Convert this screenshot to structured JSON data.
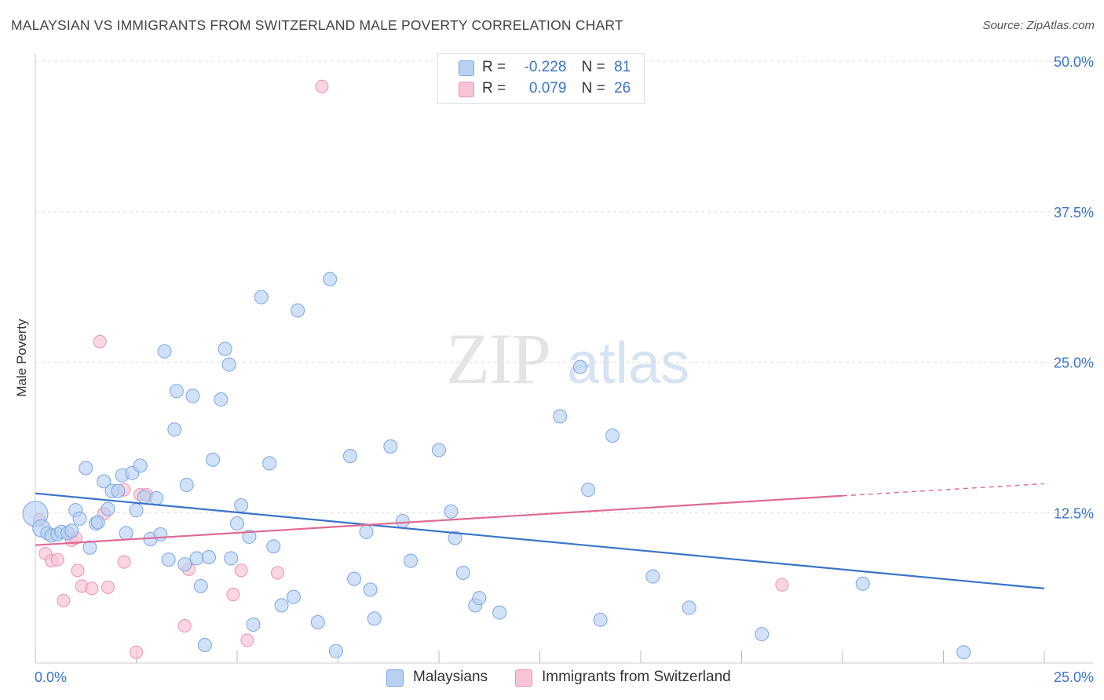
{
  "title": "MALAYSIAN VS IMMIGRANTS FROM SWITZERLAND MALE POVERTY CORRELATION CHART",
  "source": "Source: ZipAtlas.com",
  "watermark": {
    "zip": "ZIP",
    "atlas": "atlas"
  },
  "legend": {
    "row1": {
      "r_label": "R =",
      "r_value": "-0.228",
      "n_label": "N =",
      "n_value": "81"
    },
    "row2": {
      "r_label": "R =",
      "r_value": "0.079",
      "n_label": "N =",
      "n_value": "26"
    }
  },
  "colors": {
    "blue_fill": "#b8d1f3",
    "blue_stroke": "#7aa6e0",
    "blue_line": "#3a74c9",
    "pink_fill": "#f8c4d4",
    "pink_stroke": "#ea93b0",
    "pink_line": "#e06a93",
    "grid": "#dddddd",
    "tick_label": "#3a74c9"
  },
  "chart_data": {
    "type": "scatter",
    "title": "MALAYSIAN VS IMMIGRANTS FROM SWITZERLAND MALE POVERTY CORRELATION CHART",
    "xlabel": "",
    "ylabel": "Male Poverty",
    "xlim": [
      0,
      25
    ],
    "ylim": [
      0,
      50
    ],
    "x_tick_labels": [
      "0.0%",
      "25.0%"
    ],
    "y_ticks": [
      12.5,
      25,
      37.5,
      50
    ],
    "y_tick_labels": [
      "12.5%",
      "25.0%",
      "37.5%",
      "50.0%"
    ],
    "grid": true,
    "legend_position": "bottom",
    "series": [
      {
        "name": "Malaysians",
        "color": "#b8d1f3",
        "r": -0.228,
        "n": 81,
        "trend": {
          "x": [
            0,
            25
          ],
          "y": [
            14.1,
            6.2
          ]
        },
        "points": [
          [
            0.0,
            12.4
          ],
          [
            0.15,
            11.2
          ],
          [
            0.3,
            10.8
          ],
          [
            0.4,
            10.6
          ],
          [
            0.55,
            10.7
          ],
          [
            0.65,
            10.9
          ],
          [
            0.8,
            10.8
          ],
          [
            0.9,
            11.0
          ],
          [
            1.0,
            12.7
          ],
          [
            1.1,
            12.0
          ],
          [
            1.25,
            16.2
          ],
          [
            1.35,
            9.6
          ],
          [
            1.5,
            11.6
          ],
          [
            1.55,
            11.7
          ],
          [
            1.7,
            15.1
          ],
          [
            1.8,
            12.8
          ],
          [
            1.9,
            14.3
          ],
          [
            2.05,
            14.3
          ],
          [
            2.15,
            15.6
          ],
          [
            2.25,
            10.8
          ],
          [
            2.4,
            15.8
          ],
          [
            2.5,
            12.7
          ],
          [
            2.6,
            16.4
          ],
          [
            2.7,
            13.8
          ],
          [
            2.85,
            10.3
          ],
          [
            3.0,
            13.7
          ],
          [
            3.1,
            10.7
          ],
          [
            3.2,
            25.9
          ],
          [
            3.3,
            8.6
          ],
          [
            3.45,
            19.4
          ],
          [
            3.5,
            22.6
          ],
          [
            3.7,
            8.2
          ],
          [
            3.75,
            14.8
          ],
          [
            3.9,
            22.2
          ],
          [
            4.0,
            8.7
          ],
          [
            4.1,
            6.4
          ],
          [
            4.2,
            1.5
          ],
          [
            4.3,
            8.8
          ],
          [
            4.4,
            16.9
          ],
          [
            4.6,
            21.9
          ],
          [
            4.7,
            26.1
          ],
          [
            4.8,
            24.8
          ],
          [
            4.85,
            8.7
          ],
          [
            5.0,
            11.6
          ],
          [
            5.1,
            13.1
          ],
          [
            5.3,
            10.5
          ],
          [
            5.4,
            3.2
          ],
          [
            5.6,
            30.4
          ],
          [
            5.8,
            16.6
          ],
          [
            5.9,
            9.7
          ],
          [
            6.1,
            4.8
          ],
          [
            6.4,
            5.5
          ],
          [
            6.5,
            29.3
          ],
          [
            7.0,
            3.4
          ],
          [
            7.3,
            31.9
          ],
          [
            7.45,
            1.0
          ],
          [
            7.8,
            17.2
          ],
          [
            7.9,
            7.0
          ],
          [
            8.2,
            10.9
          ],
          [
            8.3,
            6.1
          ],
          [
            8.4,
            3.7
          ],
          [
            8.8,
            18.0
          ],
          [
            9.1,
            11.8
          ],
          [
            9.3,
            8.5
          ],
          [
            10.0,
            17.7
          ],
          [
            10.3,
            12.6
          ],
          [
            10.4,
            10.4
          ],
          [
            10.6,
            7.5
          ],
          [
            10.9,
            4.8
          ],
          [
            11.0,
            5.4
          ],
          [
            11.5,
            4.2
          ],
          [
            13.0,
            20.5
          ],
          [
            13.5,
            24.6
          ],
          [
            13.7,
            14.4
          ],
          [
            14.0,
            3.6
          ],
          [
            14.3,
            18.9
          ],
          [
            15.3,
            7.2
          ],
          [
            16.2,
            4.6
          ],
          [
            18.0,
            2.4
          ],
          [
            20.5,
            6.6
          ],
          [
            23.0,
            0.9
          ]
        ]
      },
      {
        "name": "Immigrants from Switzerland",
        "color": "#f8c4d4",
        "r": 0.079,
        "n": 26,
        "trend": {
          "x": [
            0,
            20
          ],
          "y": [
            9.8,
            13.9
          ]
        },
        "trend_dashed": {
          "x": [
            20,
            25
          ],
          "y": [
            13.9,
            14.9
          ]
        },
        "points": [
          [
            0.1,
            11.9
          ],
          [
            0.25,
            9.1
          ],
          [
            0.4,
            8.5
          ],
          [
            0.55,
            8.6
          ],
          [
            0.7,
            5.2
          ],
          [
            0.9,
            10.2
          ],
          [
            1.0,
            10.4
          ],
          [
            1.05,
            7.7
          ],
          [
            1.15,
            6.4
          ],
          [
            1.4,
            6.2
          ],
          [
            1.6,
            26.7
          ],
          [
            1.7,
            12.4
          ],
          [
            1.8,
            6.3
          ],
          [
            2.2,
            14.4
          ],
          [
            2.2,
            8.4
          ],
          [
            2.5,
            0.9
          ],
          [
            2.6,
            14.0
          ],
          [
            2.75,
            14.0
          ],
          [
            3.7,
            3.1
          ],
          [
            3.8,
            7.8
          ],
          [
            4.9,
            5.7
          ],
          [
            5.1,
            7.7
          ],
          [
            5.25,
            1.9
          ],
          [
            6.0,
            7.5
          ],
          [
            7.1,
            47.9
          ],
          [
            18.5,
            6.5
          ]
        ]
      }
    ]
  }
}
